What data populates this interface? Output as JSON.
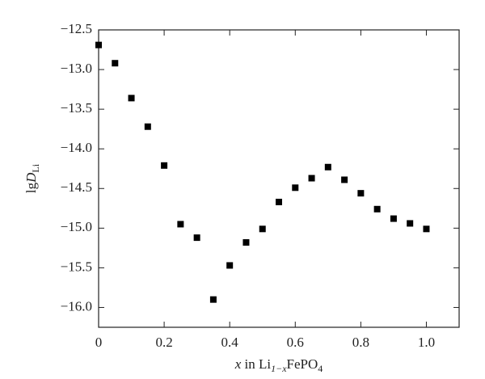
{
  "chart_data": {
    "type": "scatter",
    "xlabel": [
      "x",
      " in Li",
      "1−x",
      "FePO",
      "4"
    ],
    "ylabel": [
      "lg",
      "D",
      "Li"
    ],
    "x": [
      0,
      0.05,
      0.1,
      0.15,
      0.2,
      0.25,
      0.3,
      0.35,
      0.4,
      0.45,
      0.5,
      0.55,
      0.6,
      0.65,
      0.7,
      0.75,
      0.8,
      0.85,
      0.9,
      0.95,
      1.0
    ],
    "values": [
      -12.69,
      -12.92,
      -13.36,
      -13.72,
      -14.21,
      -14.95,
      -15.12,
      -15.9,
      -15.47,
      -15.18,
      -15.01,
      -14.67,
      -14.49,
      -14.37,
      -14.23,
      -14.39,
      -14.56,
      -14.76,
      -14.88,
      -14.94,
      -15.01
    ],
    "color": "#000000",
    "xlim": [
      0,
      1.1
    ],
    "xticks": [
      0,
      0.2,
      0.4,
      0.6,
      0.8,
      {
        "value": 1,
        "label": "1.0"
      }
    ],
    "ylim": [
      -16.25,
      -12.5
    ],
    "yticks": [
      {
        "value": -12.5,
        "label": "−12.5"
      },
      {
        "value": -13,
        "label": "−13.0"
      },
      {
        "value": -13.5,
        "label": "−13.5"
      },
      {
        "value": -14,
        "label": "−14.0"
      },
      {
        "value": -14.5,
        "label": "−14.5"
      },
      {
        "value": -15,
        "label": "−15.0"
      },
      {
        "value": -15.5,
        "label": "−15.5"
      },
      {
        "value": -16,
        "label": "−16.0"
      }
    ]
  }
}
